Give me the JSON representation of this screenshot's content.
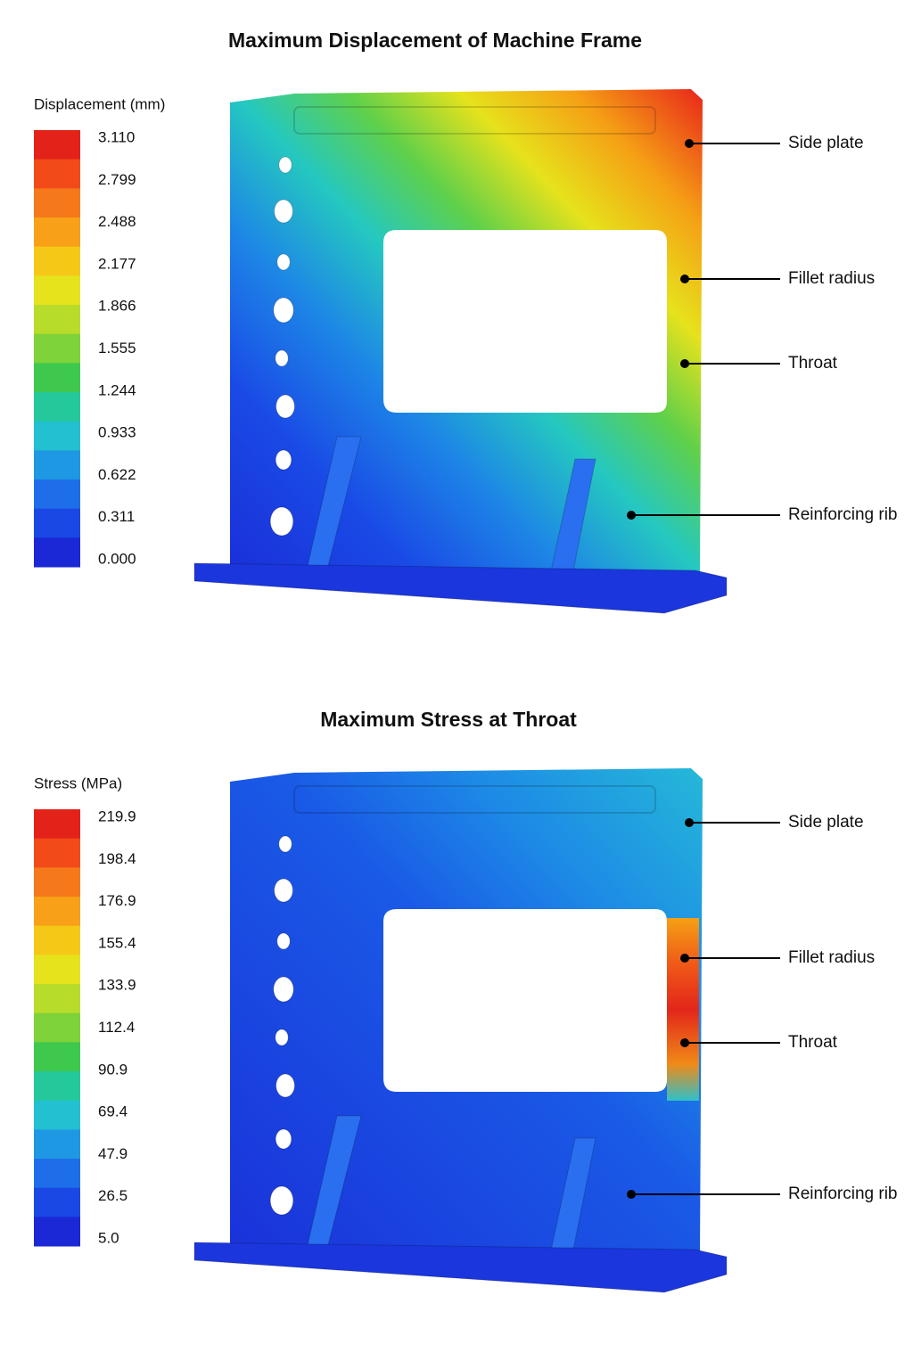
{
  "panels": [
    {
      "title": "Maximum Displacement of Machine Frame",
      "legend": {
        "title": "Displacement (mm)",
        "labels": [
          "3.110",
          "2.799",
          "2.488",
          "2.177",
          "1.866",
          "1.555",
          "1.244",
          "0.933",
          "0.622",
          "0.311",
          "0.000"
        ]
      },
      "callouts": [
        "Side plate",
        "Fillet radius",
        "Throat",
        "Reinforcing rib"
      ]
    },
    {
      "title": "Maximum Stress at Throat",
      "legend": {
        "title": "Stress (MPa)",
        "labels": [
          "219.9",
          "198.4",
          "176.9",
          "155.4",
          "133.9",
          "112.4",
          "90.9",
          "69.4",
          "47.9",
          "26.5",
          "5.0"
        ]
      },
      "callouts": [
        "Side plate",
        "Fillet radius",
        "Throat",
        "Reinforcing rib"
      ]
    }
  ]
}
